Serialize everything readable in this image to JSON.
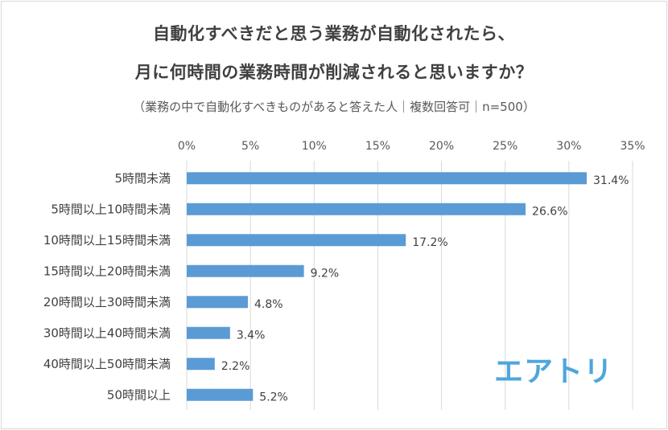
{
  "chart_data": {
    "type": "bar",
    "orientation": "horizontal",
    "title": "自動化すべきだと思う業務が自動化されたら、",
    "title_line2": "月に何時間の業務時間が削減されると思いますか？",
    "subtitle": "（業務の中で自動化すべきものがあると答えた人｜複数回答可｜n=500）",
    "categories": [
      "5時間未満",
      "5時間以上10時間未満",
      "10時間以上15時間未満",
      "15時間以上20時間未満",
      "20時間以上30時間未満",
      "30時間以上40時間未満",
      "40時間以上50時間未満",
      "50時間以上"
    ],
    "values": [
      31.4,
      26.6,
      17.2,
      9.2,
      4.8,
      3.4,
      2.2,
      5.2
    ],
    "value_labels": [
      "31.4%",
      "26.6%",
      "17.2%",
      "9.2%",
      "4.8%",
      "3.4%",
      "2.2%",
      "5.2%"
    ],
    "xlim": [
      0,
      35
    ],
    "xticks": [
      0,
      5,
      10,
      15,
      20,
      25,
      30,
      35
    ],
    "xtick_labels": [
      "0%",
      "5%",
      "10%",
      "15%",
      "20%",
      "25%",
      "30%",
      "35%"
    ],
    "xaxis_position": "top",
    "grid": true,
    "bar_color": "#5b9bd5"
  },
  "logo_text": "エアトリ",
  "logo_color": "#4ea6dc"
}
